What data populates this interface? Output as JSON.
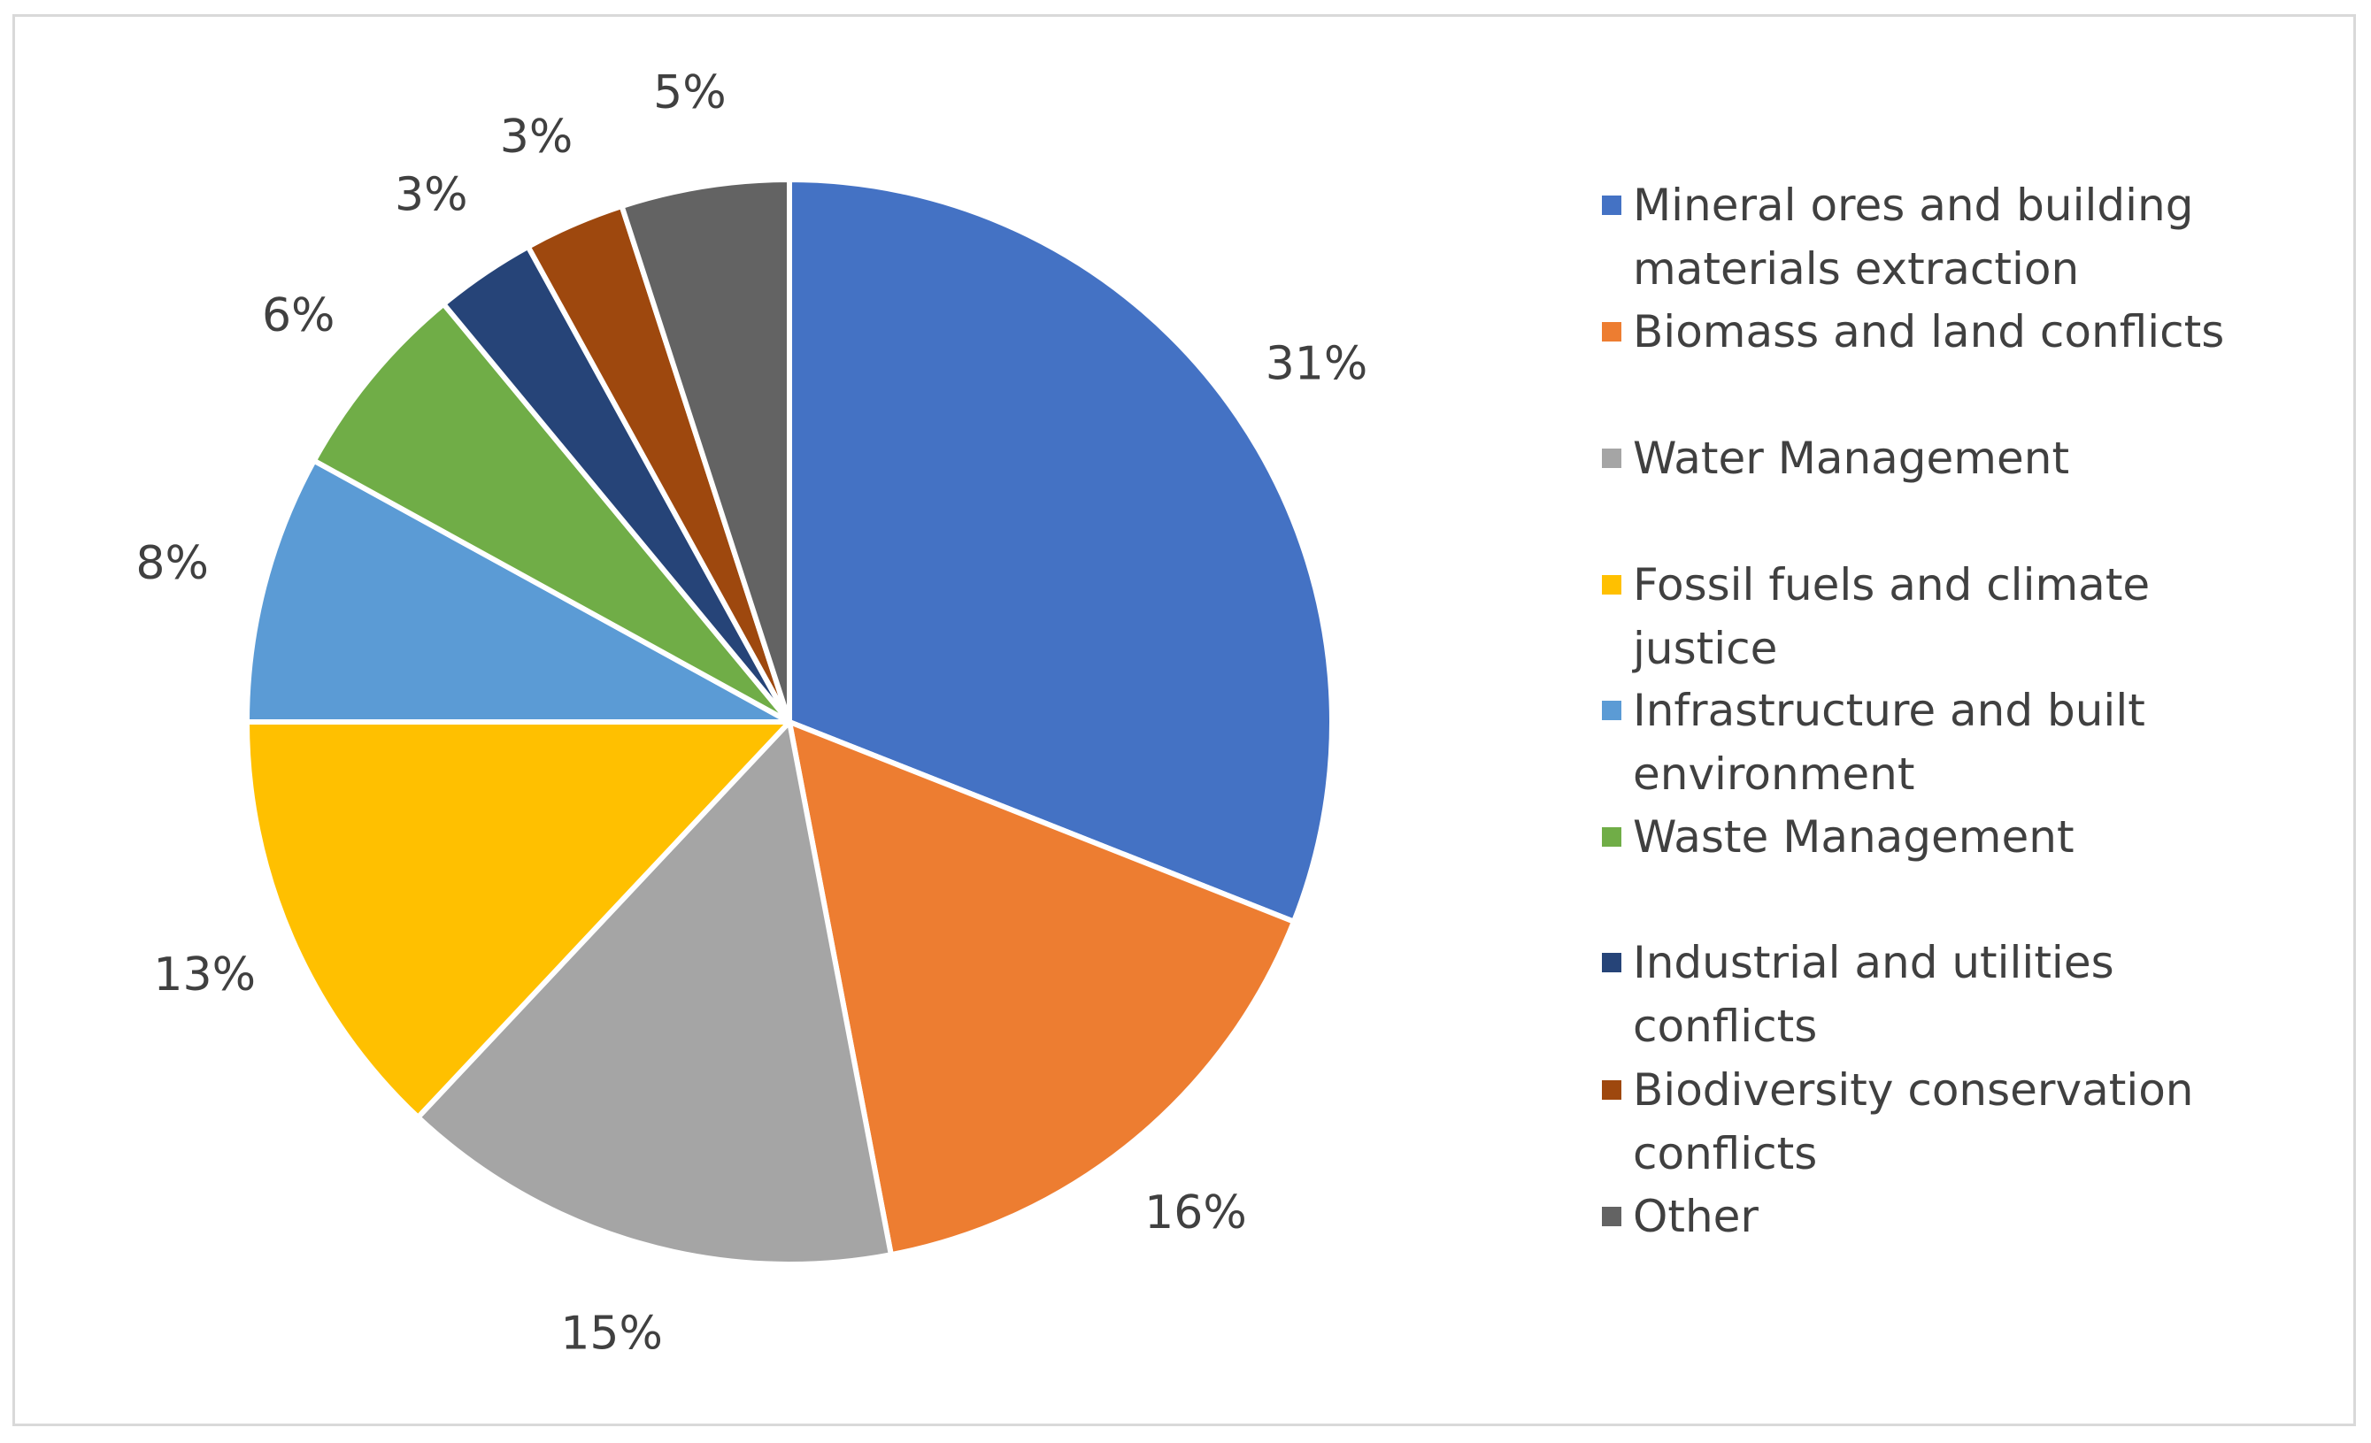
{
  "chart_data": {
    "type": "pie",
    "title": "",
    "legend_position": "right",
    "slices": [
      {
        "label": "Mineral ores and building materials extraction",
        "value": 31,
        "display": "31%",
        "color": "#4472C4"
      },
      {
        "label": "Biomass and land conflicts",
        "value": 16,
        "display": "16%",
        "color": "#ED7D31"
      },
      {
        "label": "Water Management",
        "value": 15,
        "display": "15%",
        "color": "#A5A5A5"
      },
      {
        "label": "Fossil fuels and climate justice",
        "value": 13,
        "display": "13%",
        "color": "#FFC000"
      },
      {
        "label": "Infrastructure and built environment",
        "value": 8,
        "display": "8%",
        "color": "#5B9BD5"
      },
      {
        "label": "Waste Management",
        "value": 6,
        "display": "6%",
        "color": "#70AD47"
      },
      {
        "label": "Industrial and utilities conflicts",
        "value": 3,
        "display": "3%",
        "color": "#264478"
      },
      {
        "label": "Biodiversity conservation conflicts",
        "value": 3,
        "display": "3%",
        "color": "#9E480E"
      },
      {
        "label": "Other",
        "value": 5,
        "display": "5%",
        "color": "#636363"
      }
    ]
  }
}
